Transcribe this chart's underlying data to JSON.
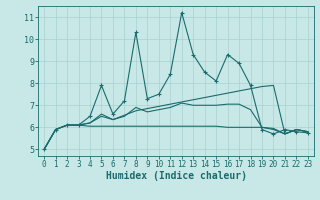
{
  "xlabel": "Humidex (Indice chaleur)",
  "background_color": "#c8e8e8",
  "line_color": "#1a6b6b",
  "grid_color": "#a8d0d0",
  "xlim": [
    -0.5,
    23.5
  ],
  "ylim": [
    4.7,
    11.5
  ],
  "xticks": [
    0,
    1,
    2,
    3,
    4,
    5,
    6,
    7,
    8,
    9,
    10,
    11,
    12,
    13,
    14,
    15,
    16,
    17,
    18,
    19,
    20,
    21,
    22,
    23
  ],
  "yticks": [
    5,
    6,
    7,
    8,
    9,
    10,
    11
  ],
  "x": [
    0,
    1,
    2,
    3,
    4,
    5,
    6,
    7,
    8,
    9,
    10,
    11,
    12,
    13,
    14,
    15,
    16,
    17,
    18,
    19,
    20,
    21,
    22,
    23
  ],
  "series_main": [
    5.0,
    5.9,
    6.1,
    6.1,
    6.5,
    7.9,
    6.6,
    7.2,
    10.3,
    7.3,
    7.5,
    8.4,
    11.2,
    9.3,
    8.5,
    8.1,
    9.3,
    8.9,
    7.9,
    5.9,
    5.7,
    5.9,
    5.8,
    5.75
  ],
  "series_rising": [
    5.0,
    5.9,
    6.1,
    6.1,
    6.2,
    6.5,
    6.35,
    6.55,
    6.75,
    6.85,
    6.95,
    7.05,
    7.15,
    7.25,
    7.35,
    7.45,
    7.55,
    7.65,
    7.75,
    7.85,
    7.9,
    5.7,
    5.9,
    5.8
  ],
  "series_flat": [
    5.0,
    5.9,
    6.1,
    6.1,
    6.05,
    6.05,
    6.05,
    6.05,
    6.05,
    6.05,
    6.05,
    6.05,
    6.05,
    6.05,
    6.05,
    6.05,
    6.0,
    6.0,
    6.0,
    6.0,
    5.95,
    5.7,
    5.9,
    5.8
  ],
  "series_mid": [
    5.0,
    5.9,
    6.1,
    6.1,
    6.2,
    6.6,
    6.35,
    6.5,
    6.9,
    6.7,
    6.8,
    6.9,
    7.1,
    7.0,
    7.0,
    7.0,
    7.05,
    7.05,
    6.8,
    6.0,
    5.9,
    5.7,
    5.9,
    5.8
  ]
}
